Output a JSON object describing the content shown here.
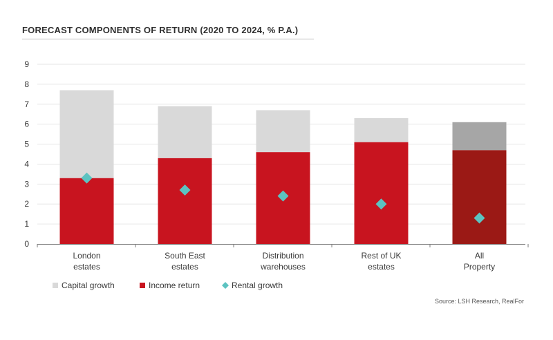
{
  "title": "FORECAST COMPONENTS OF RETURN (2020 TO 2024, % P.A.)",
  "source": "Source: LSH Research, RealFor",
  "colors": {
    "capital": "#d9d9d9",
    "income": "#c8141f",
    "capital_all": "#a6a6a6",
    "income_all": "#9b1915",
    "rental": "#5cc3c1",
    "grid": "#e6e6e6",
    "axis": "#7a7a7a"
  },
  "chart_data": {
    "type": "bar",
    "stacked": true,
    "categories": [
      [
        "London",
        "estates"
      ],
      [
        "South East",
        "estates"
      ],
      [
        "Distribution",
        "warehouses"
      ],
      [
        "Rest of UK",
        "estates"
      ],
      [
        "All",
        "Property"
      ]
    ],
    "series": [
      {
        "name": "Income return",
        "type": "bar",
        "values": [
          3.3,
          4.3,
          4.6,
          5.1,
          4.7
        ]
      },
      {
        "name": "Capital growth",
        "type": "bar",
        "values": [
          4.4,
          2.6,
          2.1,
          1.2,
          1.4
        ]
      },
      {
        "name": "Rental growth",
        "type": "scatter",
        "marker": "diamond",
        "values": [
          3.3,
          2.7,
          2.4,
          2.0,
          1.3
        ]
      }
    ],
    "legend": [
      "Capital growth",
      "Income return",
      "Rental growth"
    ],
    "legend_position": "bottom-left",
    "yticks": [
      "0",
      "1",
      "2",
      "3",
      "4",
      "5",
      "6",
      "7",
      "8",
      "9"
    ],
    "ylim": [
      0,
      9
    ],
    "grid": true
  }
}
